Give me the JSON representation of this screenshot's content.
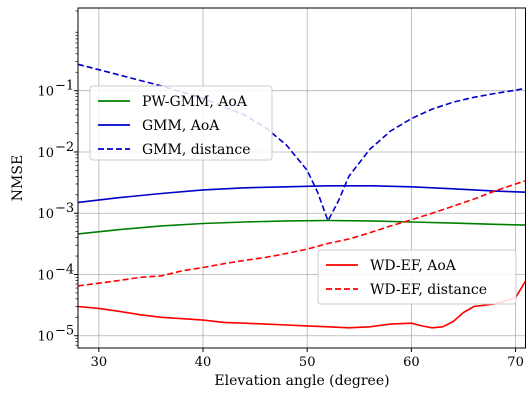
{
  "chart_data": {
    "type": "line",
    "title": "",
    "xlabel": "Elevation angle (degree)",
    "ylabel": "NMSE",
    "xlim": [
      28,
      71
    ],
    "ylim_log10": [
      -5.2,
      0.35
    ],
    "yscale": "log",
    "grid": true,
    "x_ticks": [
      30,
      40,
      50,
      60,
      70
    ],
    "x_tick_labels": [
      "30",
      "40",
      "50",
      "60",
      "70"
    ],
    "y_ticks_log10": [
      -5,
      -4,
      -3,
      -2,
      -1
    ],
    "y_tick_labels": [
      {
        "base": "10",
        "exp": "−5"
      },
      {
        "base": "10",
        "exp": "−4"
      },
      {
        "base": "10",
        "exp": "−3"
      },
      {
        "base": "10",
        "exp": "−2"
      },
      {
        "base": "10",
        "exp": "−1"
      }
    ],
    "legends": [
      {
        "placement": "upper-left",
        "entries": [
          0,
          1,
          2
        ]
      },
      {
        "placement": "lower-right",
        "entries": [
          3,
          4
        ]
      }
    ],
    "series": [
      {
        "name": "PW-GMM, AoA",
        "color": "#008000",
        "dash": "solid",
        "x": [
          28,
          32,
          36,
          40,
          44,
          48,
          52,
          56,
          60,
          64,
          68,
          71
        ],
        "y": [
          0.00046,
          0.00054,
          0.00062,
          0.00068,
          0.00072,
          0.00075,
          0.00076,
          0.00075,
          0.00072,
          0.00069,
          0.00066,
          0.00064
        ]
      },
      {
        "name": "GMM, AoA",
        "color": "#0000cc",
        "dash": "solid",
        "x": [
          28,
          32,
          36,
          40,
          44,
          48,
          52,
          56,
          60,
          64,
          68,
          71
        ],
        "y": [
          0.0015,
          0.0018,
          0.0021,
          0.0024,
          0.0026,
          0.0027,
          0.0028,
          0.0028,
          0.0027,
          0.0025,
          0.0023,
          0.0022
        ]
      },
      {
        "name": "GMM, distance",
        "color": "#0000cc",
        "dash": "dashed",
        "x": [
          28,
          32,
          36,
          40,
          44,
          46,
          48,
          50,
          51,
          52,
          53,
          54,
          56,
          58,
          60,
          62,
          64,
          66,
          68,
          70,
          71
        ],
        "y": [
          0.27,
          0.18,
          0.12,
          0.075,
          0.04,
          0.025,
          0.013,
          0.005,
          0.0022,
          0.00075,
          0.0016,
          0.004,
          0.011,
          0.022,
          0.035,
          0.05,
          0.065,
          0.078,
          0.09,
          0.102,
          0.11
        ]
      },
      {
        "name": "WD-EF, AoA",
        "color": "#ff0000",
        "dash": "solid",
        "x": [
          28,
          30,
          32,
          34,
          36,
          38,
          40,
          42,
          44,
          46,
          48,
          50,
          52,
          54,
          56,
          58,
          60,
          61,
          62,
          63,
          64,
          65,
          66,
          68,
          70,
          71
        ],
        "y": [
          3e-05,
          2.8e-05,
          2.5e-05,
          2.2e-05,
          2e-05,
          1.9e-05,
          1.8e-05,
          1.65e-05,
          1.6e-05,
          1.55e-05,
          1.5e-05,
          1.45e-05,
          1.4e-05,
          1.35e-05,
          1.4e-05,
          1.55e-05,
          1.6e-05,
          1.45e-05,
          1.35e-05,
          1.4e-05,
          1.7e-05,
          2.4e-05,
          3e-05,
          3.3e-05,
          4.2e-05,
          8e-05
        ]
      },
      {
        "name": "WD-EF, distance",
        "color": "#ff0000",
        "dash": "dashed",
        "x": [
          28,
          30,
          32,
          34,
          36,
          38,
          40,
          42,
          44,
          46,
          48,
          50,
          52,
          54,
          56,
          58,
          60,
          62,
          64,
          66,
          68,
          70,
          71
        ],
        "y": [
          6.5e-05,
          7.2e-05,
          8e-05,
          9e-05,
          9.5e-05,
          0.000115,
          0.00013,
          0.00015,
          0.00017,
          0.00019,
          0.00022,
          0.00026,
          0.00032,
          0.00038,
          0.00048,
          0.00062,
          0.00078,
          0.001,
          0.0013,
          0.0017,
          0.0023,
          0.003,
          0.0034
        ]
      }
    ]
  }
}
